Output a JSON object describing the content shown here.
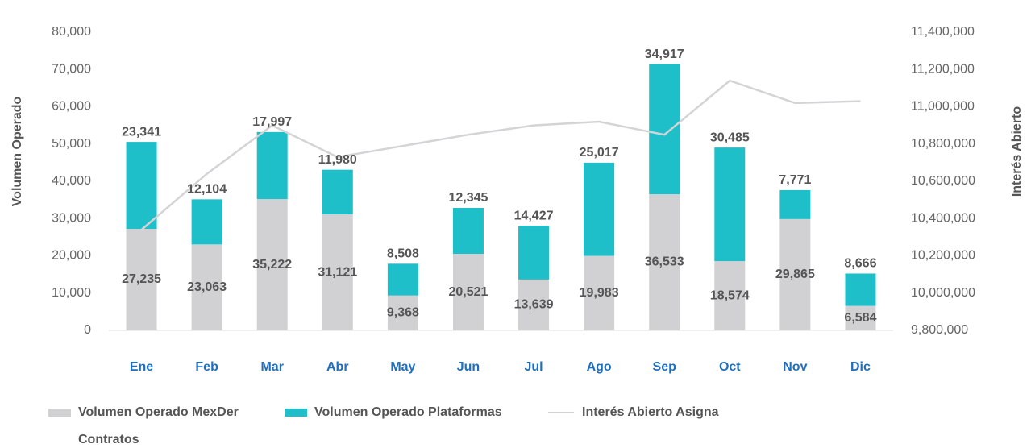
{
  "chart_data": {
    "type": "bar",
    "stacked": true,
    "categories": [
      "Ene",
      "Feb",
      "Mar",
      "Abr",
      "May",
      "Jun",
      "Jul",
      "Ago",
      "Sep",
      "Oct",
      "Nov",
      "Dic"
    ],
    "y_label": "Volumen Operado",
    "y2_label": "Interés Abierto",
    "ylim": [
      0,
      80000
    ],
    "yticks": [
      0,
      {
        "value": 10000,
        "label": "10,000"
      },
      {
        "value": 20000,
        "label": "20,000"
      },
      {
        "value": 30000,
        "label": "30,000"
      },
      {
        "value": 40000,
        "label": "40,000"
      },
      {
        "value": 50000,
        "label": "50,000"
      },
      {
        "value": 60000,
        "label": "60,000"
      },
      {
        "value": 70000,
        "label": "70,000"
      },
      {
        "value": 80000,
        "label": "80,000"
      }
    ],
    "y2lim": [
      9800000,
      11400000
    ],
    "y2ticks": [
      {
        "value": 9800000,
        "label": "9,800,000"
      },
      {
        "value": 10000000,
        "label": "10,000,000"
      },
      {
        "value": 10200000,
        "label": "10,200,000"
      },
      {
        "value": 10400000,
        "label": "10,400,000"
      },
      {
        "value": 10600000,
        "label": "10,600,000"
      },
      {
        "value": 10800000,
        "label": "10,800,000"
      },
      {
        "value": 11000000,
        "label": "11,000,000"
      },
      {
        "value": 11200000,
        "label": "11,200,000"
      },
      {
        "value": 11400000,
        "label": "11,400,000"
      }
    ],
    "series": [
      {
        "name": "Volumen Operado MexDer Contratos",
        "type": "bar",
        "color": "#d1d1d3",
        "values": [
          27235,
          23063,
          35222,
          31121,
          9368,
          20521,
          13639,
          19983,
          36533,
          18574,
          29865,
          6584
        ],
        "value_labels": [
          "27,235",
          "23,063",
          "35,222",
          "31,121",
          "9,368",
          "20,521",
          "13,639",
          "19,983",
          "36,533",
          "18,574",
          "29,865",
          "6,584"
        ]
      },
      {
        "name": "Volumen Operado Plataformas",
        "type": "bar",
        "color": "#1ebfc9",
        "values": [
          23341,
          12104,
          17997,
          11980,
          8508,
          12345,
          14427,
          25017,
          34917,
          30485,
          7771,
          8666
        ],
        "value_labels": [
          "23,341",
          "12,104",
          "17,997",
          "11,980",
          "8,508",
          "12,345",
          "14,427",
          "25,017",
          "34,917",
          "30,485",
          "7,771",
          "8,666"
        ]
      },
      {
        "name": "Interés Abierto Asigna",
        "type": "line",
        "axis": "y2",
        "color": "#d4d4d6",
        "values": [
          10340000,
          10640000,
          10900000,
          10730000,
          10790000,
          10850000,
          10900000,
          10920000,
          10850000,
          11140000,
          11020000,
          11030000
        ]
      }
    ]
  }
}
